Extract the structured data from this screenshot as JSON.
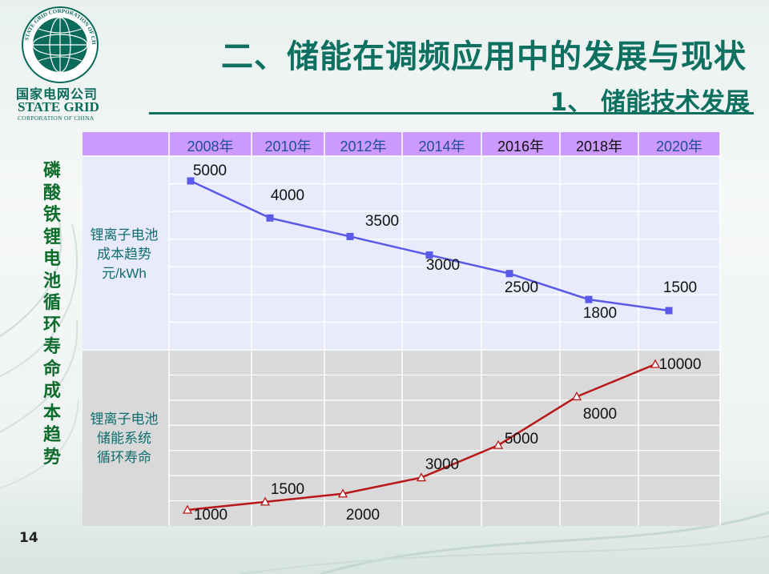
{
  "header": {
    "logo_cn": "国家电网公司",
    "logo_en": "STATE GRID",
    "logo_sub": "CORPORATION OF CHINA",
    "logo_ring_text": "STATE GRID CORPORATION OF CHINA",
    "title": "二、储能在调频应用中的发展与现状",
    "subtitle": "1、 储能技术发展"
  },
  "side_label": "磷酸铁锂电池循环寿命 成本趋势",
  "page_number": "14",
  "colors": {
    "title": "#0d7060",
    "side_label": "#0d6b2c",
    "header_row": "#cc99ff",
    "top_panel": "#e8ebfb",
    "bottom_panel": "#d9d9d9",
    "cost_line": "#5a5ae8",
    "cycle_line": "#b81818"
  },
  "chart_data": [
    {
      "type": "line",
      "title": "",
      "row_label": "锂离子电池成本趋势元/kWh",
      "row_label_lines": [
        "锂离子电池成本趋势",
        "元/kWh"
      ],
      "x": [
        "2008年",
        "2010年",
        "2012年",
        "2014年",
        "2016年",
        "2018年",
        "2020年"
      ],
      "series": [
        {
          "values": [
            5000,
            4000,
            3500,
            3000,
            2500,
            1800,
            1500
          ],
          "marker": "square"
        }
      ],
      "data_labels": [
        "5000",
        "4000",
        "3500",
        "3000",
        "2500",
        "1800",
        "1500"
      ],
      "ylim": [
        1000,
        6000
      ],
      "grid": true
    },
    {
      "type": "line",
      "title": "",
      "row_label": "锂离子电池储能系统循环寿命",
      "row_label_lines": [
        "锂离子电池储能系统",
        "循环寿命"
      ],
      "x": [
        "2008年",
        "2010年",
        "2012年",
        "2014年",
        "2016年",
        "2018年",
        "2020年"
      ],
      "series": [
        {
          "values": [
            1000,
            1500,
            2000,
            3000,
            5000,
            8000,
            10000
          ],
          "marker": "triangle"
        }
      ],
      "data_labels": [
        "1000",
        "1500",
        "2000",
        "3000",
        "5000",
        "8000",
        "10000"
      ],
      "grid": true
    }
  ]
}
